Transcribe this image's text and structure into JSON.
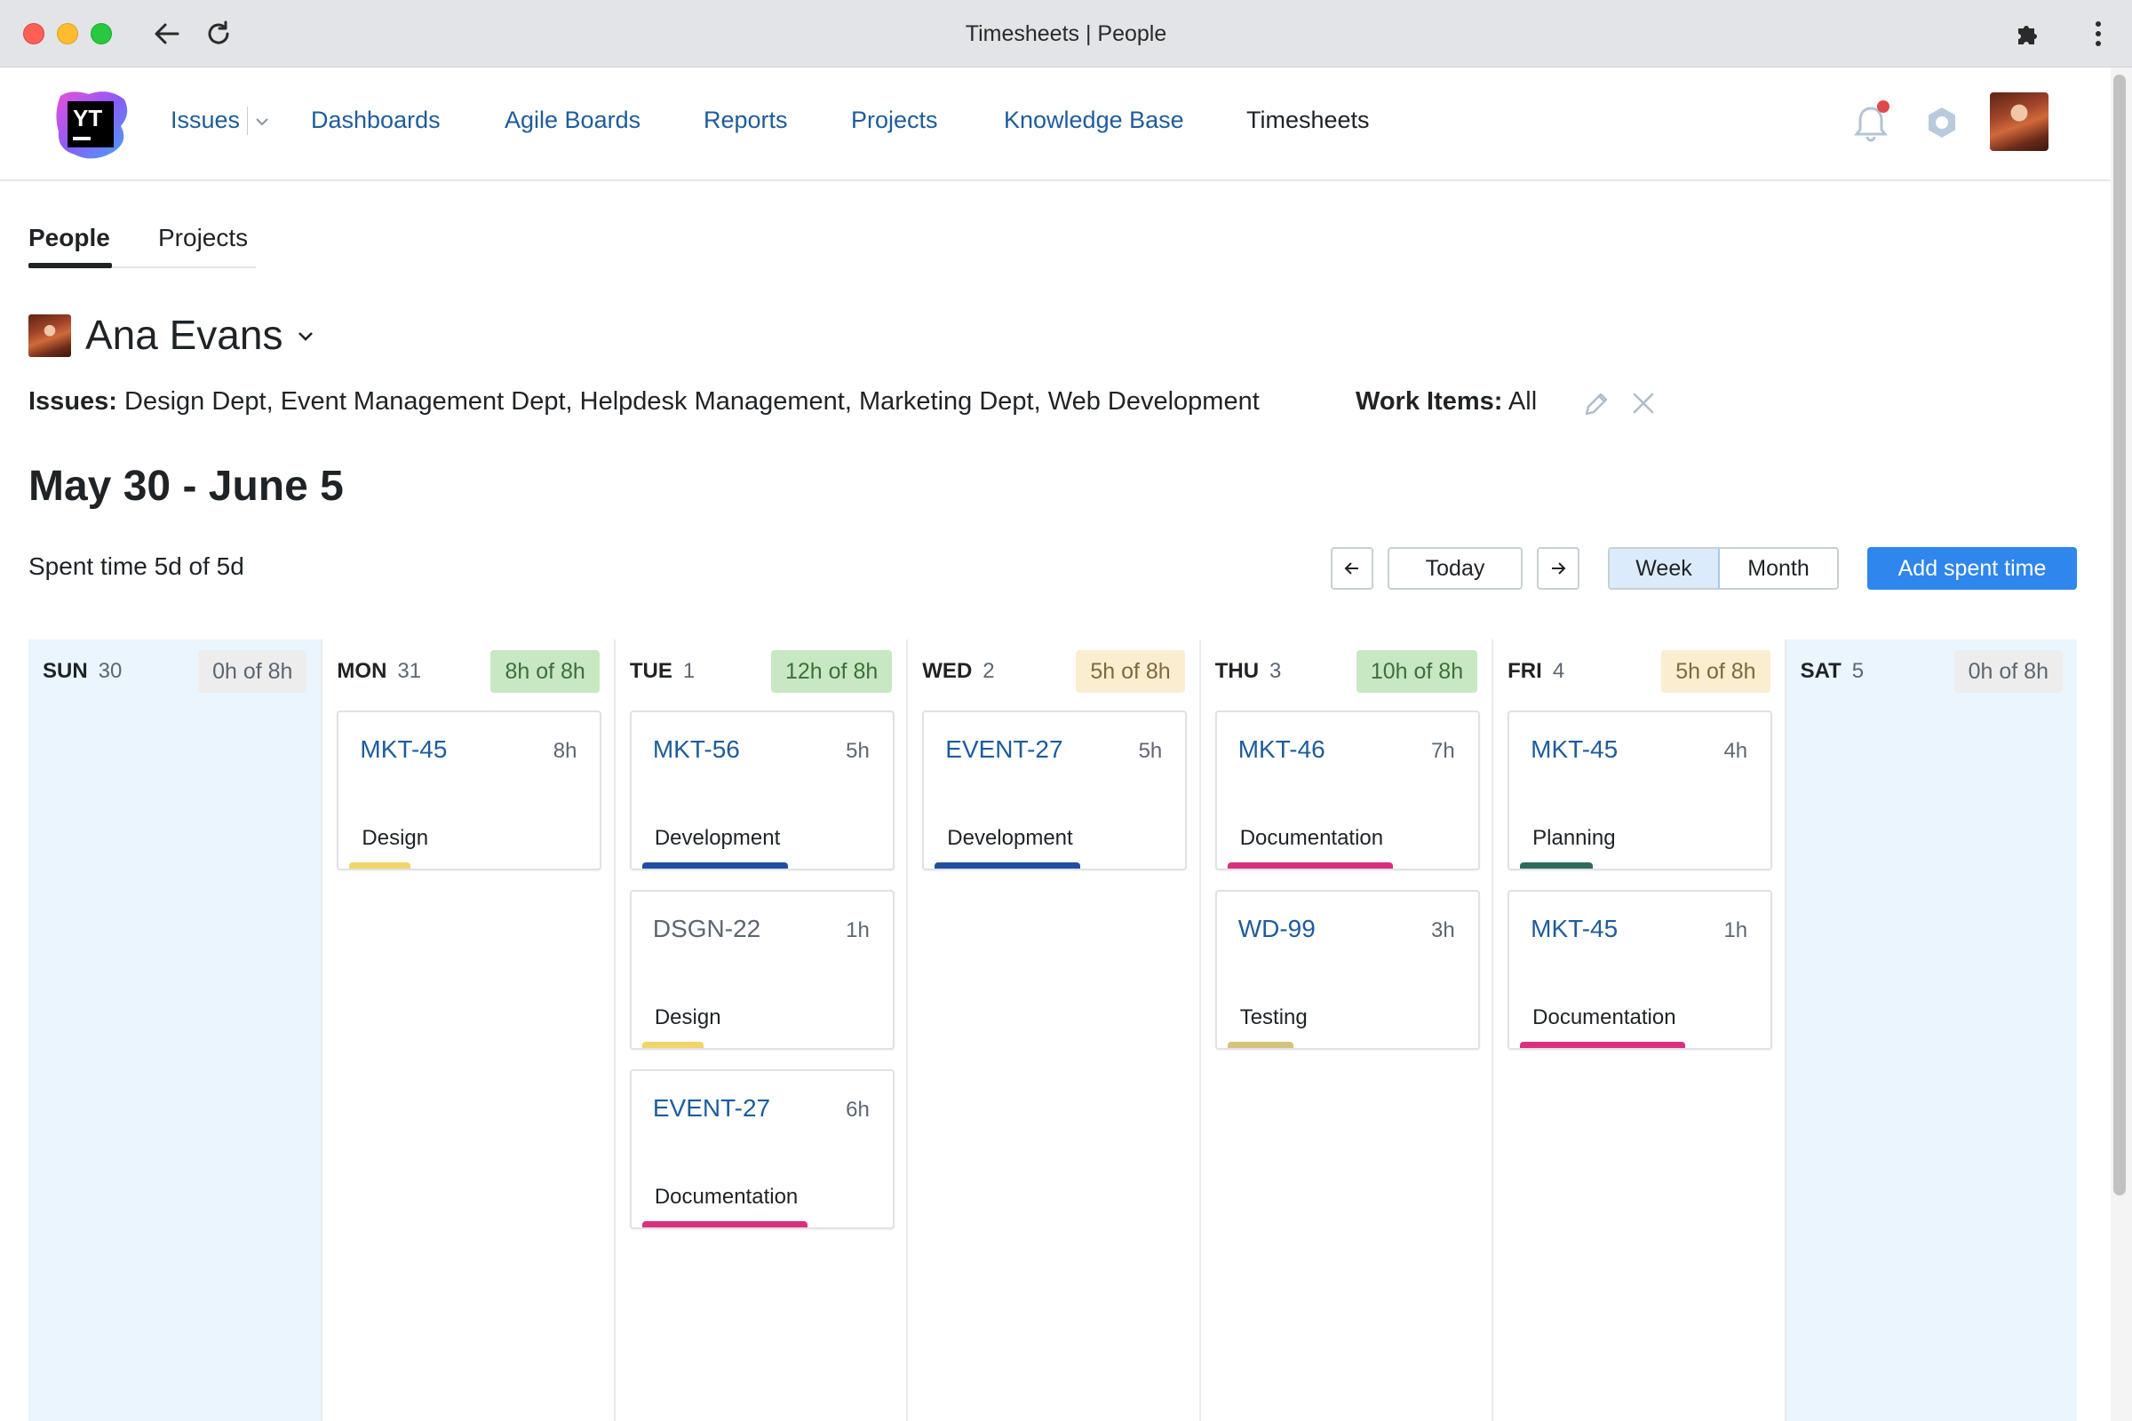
{
  "window": {
    "title": "Timesheets | People"
  },
  "nav": {
    "issues": "Issues",
    "dashboards": "Dashboards",
    "agile_boards": "Agile Boards",
    "reports": "Reports",
    "projects": "Projects",
    "knowledge_base": "Knowledge Base",
    "timesheets": "Timesheets"
  },
  "logo_text": "YT",
  "tabs": {
    "people": "People",
    "projects": "Projects"
  },
  "user": {
    "name": "Ana Evans"
  },
  "filters": {
    "issues_label": "Issues:",
    "issues_value": "Design Dept, Event Management Dept, Helpdesk Management, Marketing Dept, Web Development",
    "work_items_label": "Work Items:",
    "work_items_value": "All"
  },
  "range_title": "May 30 - June 5",
  "spent_summary": "Spent time 5d of 5d",
  "toolbar": {
    "prev": "←",
    "today": "Today",
    "next": "→",
    "week": "Week",
    "month": "Month",
    "add_spent_time": "Add spent time"
  },
  "colors": {
    "design": "#f3d46a",
    "development": "#1f4fa3",
    "documentation": "#d8307e",
    "testing": "#d6c27c",
    "planning": "#2e6b5e",
    "notification_dot": "#e0484c",
    "primary": "#2f86ec"
  },
  "days": [
    {
      "dow": "SUN",
      "num": "30",
      "badge": "0h of 8h",
      "badge_style": "grey",
      "weekend": true,
      "cards": []
    },
    {
      "dow": "MON",
      "num": "31",
      "badge": "8h of 8h",
      "badge_style": "green",
      "weekend": false,
      "cards": [
        {
          "id": "MKT-45",
          "hours": "8h",
          "type": "Design",
          "color": "#f3d46a",
          "bar_fill": 0.25
        }
      ]
    },
    {
      "dow": "TUE",
      "num": "1",
      "badge": "12h of 8h",
      "badge_style": "green",
      "weekend": false,
      "cards": [
        {
          "id": "MKT-56",
          "hours": "5h",
          "type": "Development",
          "color": "#1f4fa3",
          "bar_fill": 0.6
        },
        {
          "id": "DSGN-22",
          "hours": "1h",
          "type": "Design",
          "color": "#f3d46a",
          "bar_fill": 0.25,
          "muted": true
        },
        {
          "id": "EVENT-27",
          "hours": "6h",
          "type": "Documentation",
          "color": "#d8307e",
          "bar_fill": 0.68
        }
      ]
    },
    {
      "dow": "WED",
      "num": "2",
      "badge": "5h of 8h",
      "badge_style": "yellow",
      "weekend": false,
      "cards": [
        {
          "id": "EVENT-27",
          "hours": "5h",
          "type": "Development",
          "color": "#1f4fa3",
          "bar_fill": 0.6
        }
      ]
    },
    {
      "dow": "THU",
      "num": "3",
      "badge": "10h of 8h",
      "badge_style": "green",
      "weekend": false,
      "cards": [
        {
          "id": "MKT-46",
          "hours": "7h",
          "type": "Documentation",
          "color": "#d8307e",
          "bar_fill": 0.68
        },
        {
          "id": "WD-99",
          "hours": "3h",
          "type": "Testing",
          "color": "#d6c27c",
          "bar_fill": 0.27
        }
      ]
    },
    {
      "dow": "FRI",
      "num": "4",
      "badge": "5h of 8h",
      "badge_style": "yellow",
      "weekend": false,
      "cards": [
        {
          "id": "MKT-45",
          "hours": "4h",
          "type": "Planning",
          "color": "#2e6b5e",
          "bar_fill": 0.3
        },
        {
          "id": "MKT-45",
          "hours": "1h",
          "type": "Documentation",
          "color": "#d8307e",
          "bar_fill": 0.68
        }
      ]
    },
    {
      "dow": "SAT",
      "num": "5",
      "badge": "0h of 8h",
      "badge_style": "grey",
      "weekend": true,
      "cards": []
    }
  ]
}
